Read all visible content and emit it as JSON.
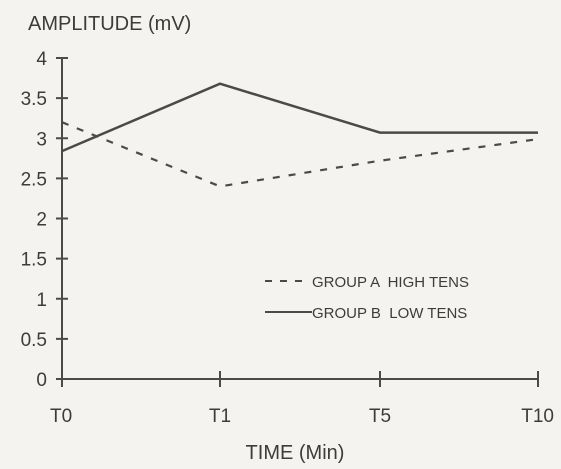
{
  "chart_data": {
    "type": "line",
    "ylabel": "AMPLITUDE (mV)",
    "xlabel": "TIME (Min)",
    "categories": [
      "T0",
      "T1",
      "T5",
      "T10"
    ],
    "ylim": [
      0,
      4
    ],
    "yticks": [
      {
        "value": 0,
        "label": "0"
      },
      {
        "value": 0.5,
        "label": "0.5"
      },
      {
        "value": 1,
        "label": "1"
      },
      {
        "value": 1.5,
        "label": "1.5"
      },
      {
        "value": 2,
        "label": "2"
      },
      {
        "value": 2.5,
        "label": "2.5"
      },
      {
        "value": 3,
        "label": "3"
      },
      {
        "value": 3.5,
        "label": "3.5"
      },
      {
        "value": 4,
        "label": "4"
      }
    ],
    "grid": false,
    "legend_position": "bottom-right",
    "series": [
      {
        "name": "GROUP A  HIGH TENS",
        "style": "dashed",
        "values": [
          3.2,
          2.4,
          2.72,
          2.99
        ]
      },
      {
        "name": "GROUP B  LOW TENS",
        "style": "solid",
        "values": [
          2.84,
          3.68,
          3.07,
          3.07
        ]
      }
    ],
    "colors": {
      "line": "#4a4a4a",
      "text": "#3c3c3c",
      "background": "#f4f3ef"
    }
  }
}
